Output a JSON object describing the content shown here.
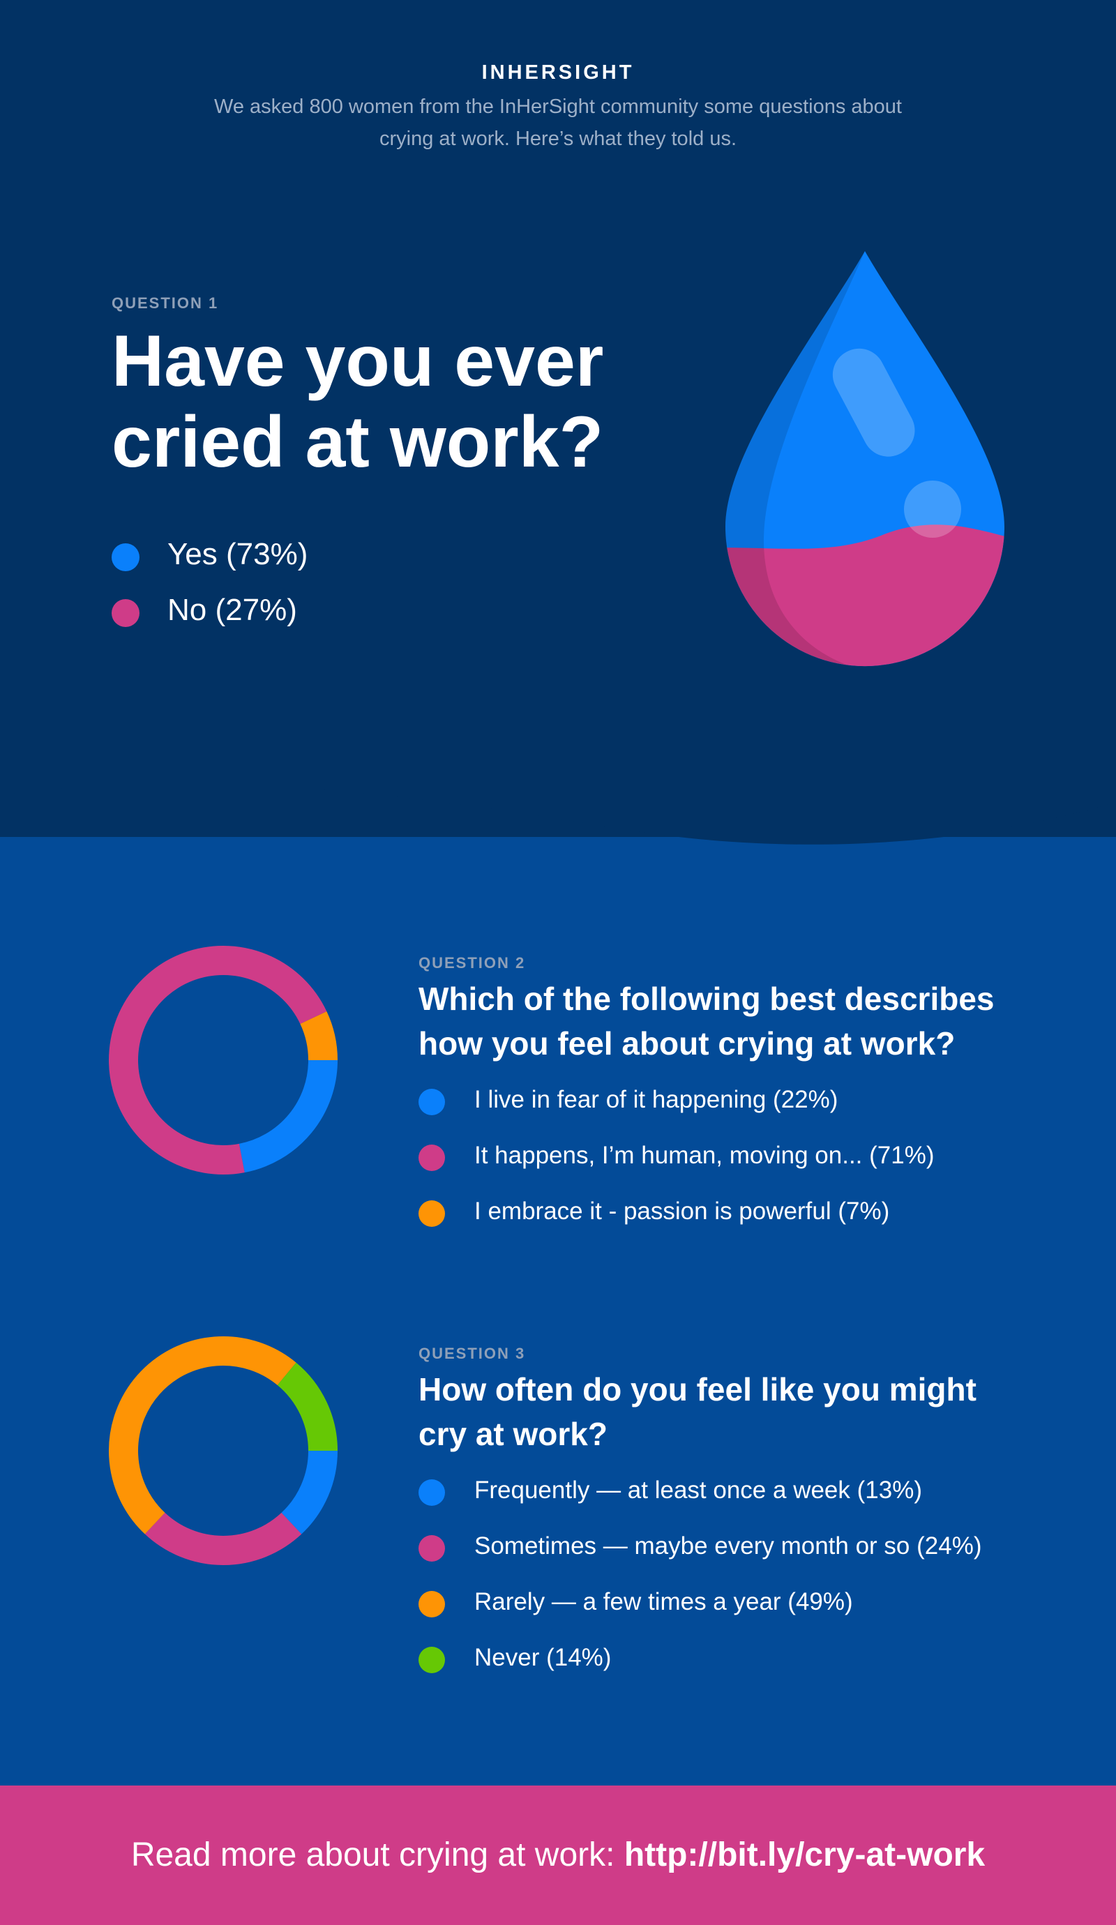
{
  "header": {
    "brand": "INHERSIGHT",
    "intro": "We asked 800 women from the InHerSight community some questions about crying at work. Here’s what they told us."
  },
  "colors": {
    "blue": "#0a80fb",
    "pink": "#cf3c88",
    "orange": "#fe9405",
    "green": "#66c805",
    "navy": "#023264",
    "mid_blue": "#034b98"
  },
  "questions": [
    {
      "label": "QUESTION 1",
      "title": "Have you ever cried at work?",
      "answers": [
        {
          "text": "Yes (73%)",
          "color": "#0a80fb"
        },
        {
          "text": "No (27%)",
          "color": "#cf3c88"
        }
      ]
    },
    {
      "label": "QUESTION 2",
      "title": "Which of the following best describes how you feel about crying at work?",
      "answers": [
        {
          "text": "I live in fear of it happening (22%)",
          "color": "#0a80fb"
        },
        {
          "text": "It happens, I’m human, moving on... (71%)",
          "color": "#cf3c88"
        },
        {
          "text": "I embrace it - passion is powerful (7%)",
          "color": "#fe9405"
        }
      ]
    },
    {
      "label": "QUESTION 3",
      "title": "How often do you feel like you might cry at work?",
      "answers": [
        {
          "text": "Frequently — at least once a week (13%)",
          "color": "#0a80fb"
        },
        {
          "text": "Sometimes — maybe every month or so (24%)",
          "color": "#cf3c88"
        },
        {
          "text": "Rarely — a few times a year (49%)",
          "color": "#fe9405"
        },
        {
          "text": "Never (14%)",
          "color": "#66c805"
        }
      ]
    }
  ],
  "chart_data": [
    {
      "type": "pie",
      "categories": [
        "Yes",
        "No"
      ],
      "values": [
        73,
        27
      ],
      "colors": [
        "#0a80fb",
        "#cf3c88"
      ]
    },
    {
      "type": "pie",
      "categories": [
        "I live in fear of it happening",
        "It happens, I’m human, moving on...",
        "I embrace it - passion is powerful"
      ],
      "values": [
        22,
        71,
        7
      ],
      "colors": [
        "#0a80fb",
        "#cf3c88",
        "#fe9405"
      ]
    },
    {
      "type": "pie",
      "categories": [
        "Frequently — at least once a week",
        "Sometimes — maybe every month or so",
        "Rarely — a few times a year",
        "Never"
      ],
      "values": [
        13,
        24,
        49,
        14
      ],
      "colors": [
        "#0a80fb",
        "#cf3c88",
        "#fe9405",
        "#66c805"
      ]
    }
  ],
  "footer": {
    "prefix": "Read more about crying at work: ",
    "link": "http://bit.ly/cry-at-work"
  }
}
